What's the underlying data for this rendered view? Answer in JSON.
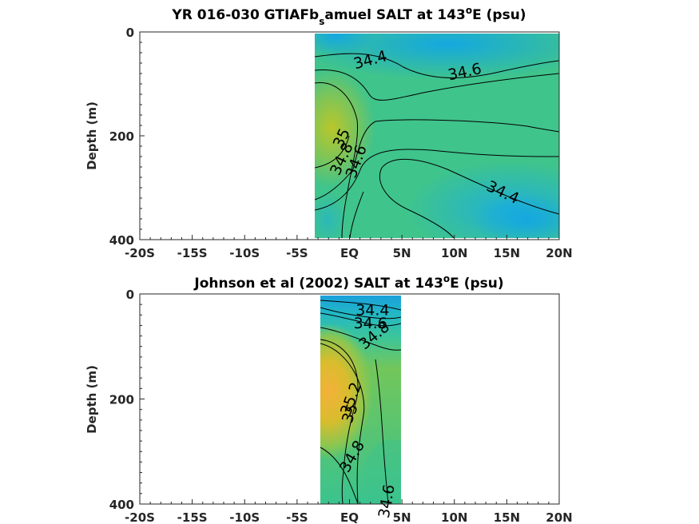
{
  "chart_data": [
    {
      "type": "heatmap",
      "title_main": "YR 016-030 GTIAFb",
      "title_sub": "s",
      "title_rest": "amuel SALT at 143",
      "title_sup": "o",
      "title_end": "E (psu)",
      "ylabel": "Depth (m)",
      "xlim": [
        -20,
        20
      ],
      "ylim": [
        0,
        400
      ],
      "y_reversed": true,
      "x_ticks": [
        -20,
        -15,
        -10,
        -5,
        0,
        5,
        10,
        15,
        20
      ],
      "x_tick_labels": [
        "-20S",
        "-15S",
        "-10S",
        "-5S",
        "EQ",
        "5N",
        "10N",
        "15N",
        "20N"
      ],
      "y_ticks": [
        0,
        200,
        400
      ],
      "y_tick_labels": [
        "0",
        "200",
        "400"
      ],
      "data_extent_x": [
        -3.5,
        20
      ],
      "data_extent_y": [
        5,
        395
      ],
      "contour_labels": [
        "34.4",
        "34.6",
        "35",
        "34.8",
        "34.6",
        "34.4"
      ],
      "contour_label_points": [
        [
          2,
          55
        ],
        [
          11,
          78
        ],
        [
          -0.7,
          205
        ],
        [
          -0.7,
          245
        ],
        [
          0.7,
          250
        ],
        [
          14.6,
          310
        ]
      ],
      "contour_label_angles": [
        -15,
        -12,
        -65,
        -65,
        -70,
        25
      ],
      "salinity_field": [
        {
          "x": -3.5,
          "y": 5,
          "v": 34.45
        },
        {
          "x": 5,
          "y": 5,
          "v": 34.35
        },
        {
          "x": 12,
          "y": 5,
          "v": 34.5
        },
        {
          "x": 20,
          "y": 5,
          "v": 34.6
        },
        {
          "x": -1.5,
          "y": 160,
          "v": 35.1
        },
        {
          "x": 2,
          "y": 200,
          "v": 34.7
        },
        {
          "x": 12,
          "y": 200,
          "v": 34.6
        },
        {
          "x": 10,
          "y": 320,
          "v": 34.3
        },
        {
          "x": 18,
          "y": 380,
          "v": 34.25
        }
      ]
    },
    {
      "type": "heatmap",
      "title_main": "Johnson et al (2002) SALT at 143",
      "title_sup": "o",
      "title_end": "E (psu)",
      "ylabel": "Depth (m)",
      "xlim": [
        -20,
        20
      ],
      "ylim": [
        0,
        400
      ],
      "y_reversed": true,
      "x_ticks": [
        -20,
        -15,
        -10,
        -5,
        0,
        5,
        10,
        15,
        20
      ],
      "x_tick_labels": [
        "-20S",
        "-15S",
        "-10S",
        "-5S",
        "EQ",
        "5N",
        "10N",
        "15N",
        "20N"
      ],
      "y_ticks": [
        0,
        200,
        400
      ],
      "y_tick_labels": [
        "0",
        "200",
        "400"
      ],
      "data_extent_x": [
        -3,
        5
      ],
      "data_extent_y": [
        5,
        400
      ],
      "contour_labels": [
        "34.4",
        "34.6",
        "34.8",
        "35.2",
        "35",
        "34.8",
        "34.6"
      ],
      "contour_label_points": [
        [
          2.2,
          32
        ],
        [
          2.0,
          57
        ],
        [
          2.4,
          80
        ],
        [
          0.2,
          200
        ],
        [
          0.1,
          228
        ],
        [
          0.3,
          310
        ],
        [
          3.6,
          395
        ]
      ],
      "contour_label_angles": [
        0,
        0,
        -40,
        -70,
        -70,
        -60,
        -80
      ],
      "salinity_field": [
        {
          "x": -3,
          "y": 5,
          "v": 34.45
        },
        {
          "x": 5,
          "y": 5,
          "v": 34.45
        },
        {
          "x": -2.5,
          "y": 180,
          "v": 35.3
        },
        {
          "x": 3,
          "y": 180,
          "v": 34.8
        },
        {
          "x": 0,
          "y": 380,
          "v": 34.75
        },
        {
          "x": 4,
          "y": 380,
          "v": 34.6
        }
      ]
    }
  ]
}
